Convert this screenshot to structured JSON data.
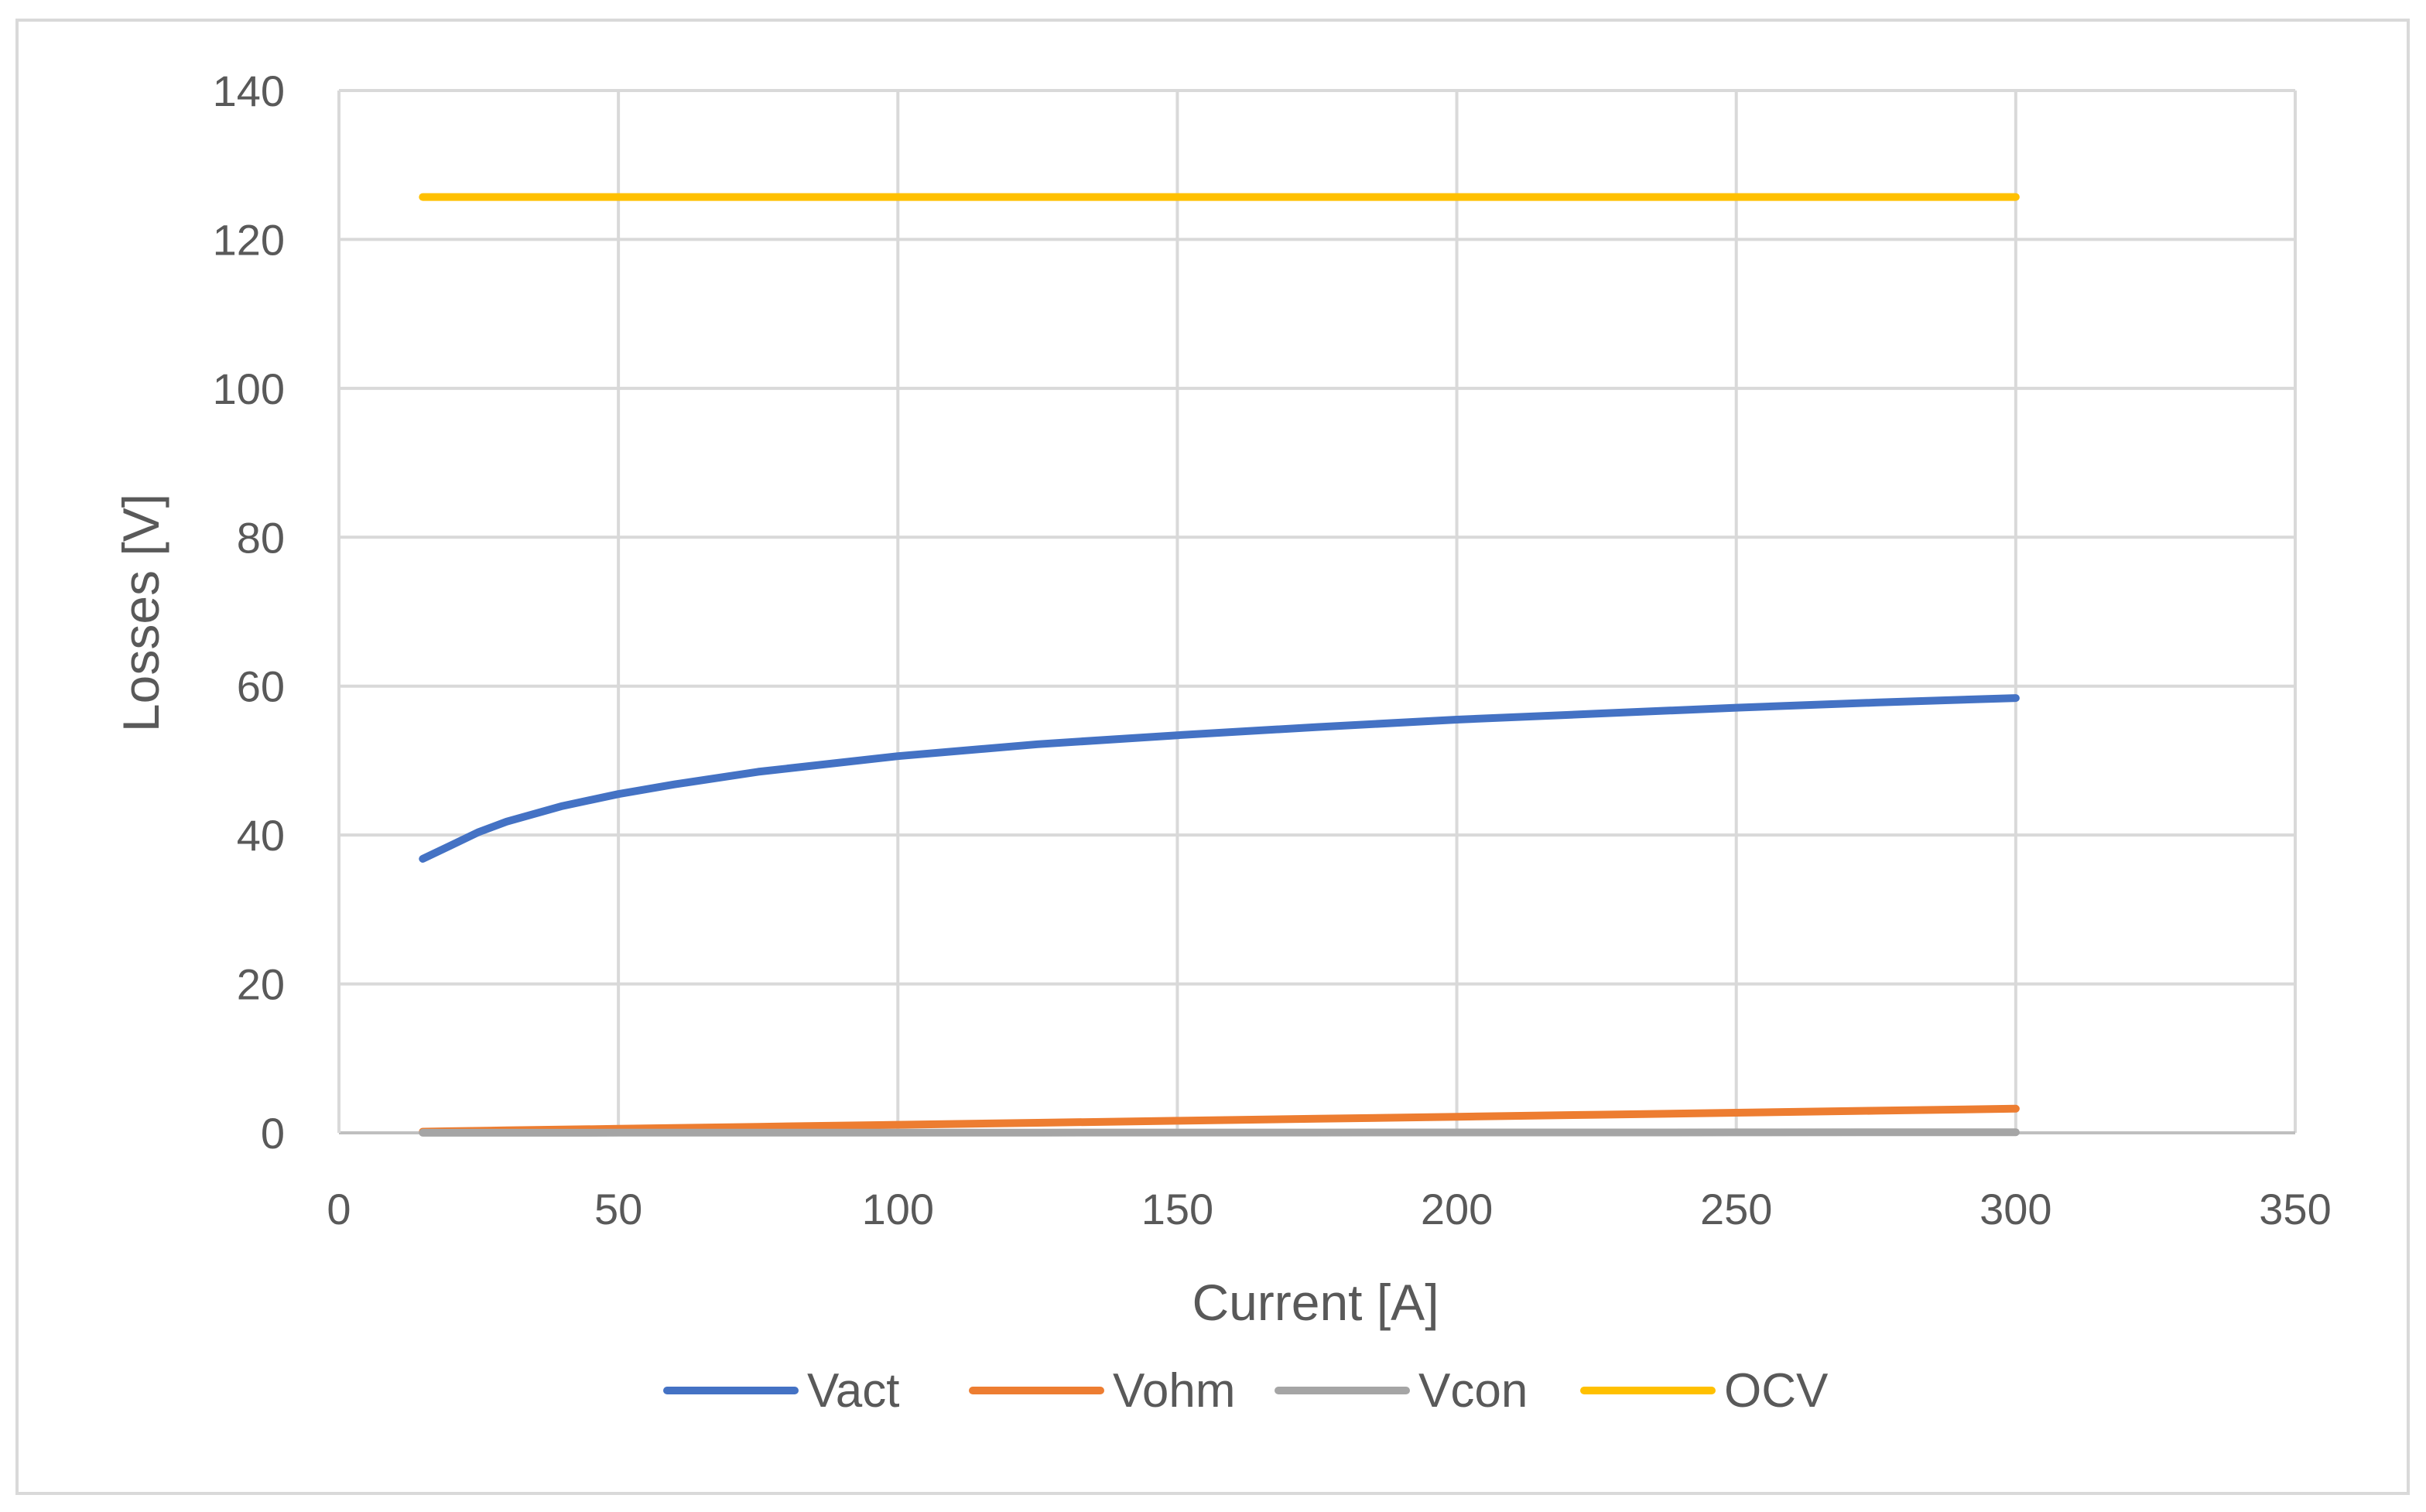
{
  "chart_data": {
    "type": "line",
    "title": "",
    "xlabel": "Current [A]",
    "ylabel": "Losses [V]",
    "xlim": [
      0,
      350
    ],
    "ylim": [
      0,
      140
    ],
    "xticks": [
      0,
      50,
      100,
      150,
      200,
      250,
      300,
      350
    ],
    "yticks": [
      0,
      20,
      40,
      60,
      80,
      100,
      120,
      140
    ],
    "grid": true,
    "legend_position": "bottom",
    "x": [
      15,
      20,
      25,
      30,
      40,
      50,
      60,
      75,
      100,
      125,
      150,
      175,
      200,
      225,
      250,
      275,
      300
    ],
    "series": [
      {
        "name": "Vact",
        "color": "#4472C4",
        "values": [
          36.8,
          38.6,
          40.4,
          41.8,
          43.9,
          45.5,
          46.8,
          48.5,
          50.6,
          52.2,
          53.4,
          54.5,
          55.5,
          56.3,
          57.1,
          57.8,
          58.4
        ]
      },
      {
        "name": "Vohm",
        "color": "#ED7D31",
        "values": [
          0.16,
          0.22,
          0.27,
          0.33,
          0.44,
          0.54,
          0.65,
          0.81,
          1.08,
          1.35,
          1.62,
          1.89,
          2.16,
          2.43,
          2.7,
          2.97,
          3.24
        ]
      },
      {
        "name": "Vcon",
        "color": "#A5A5A5",
        "values": [
          0.01,
          0.01,
          0.01,
          0.01,
          0.01,
          0.02,
          0.02,
          0.02,
          0.03,
          0.03,
          0.04,
          0.04,
          0.05,
          0.05,
          0.06,
          0.07,
          0.08
        ]
      },
      {
        "name": "OCV",
        "color": "#FFC000",
        "values": [
          125.7,
          125.7,
          125.7,
          125.7,
          125.7,
          125.7,
          125.7,
          125.7,
          125.7,
          125.7,
          125.7,
          125.7,
          125.7,
          125.7,
          125.7,
          125.7,
          125.7
        ]
      }
    ]
  }
}
